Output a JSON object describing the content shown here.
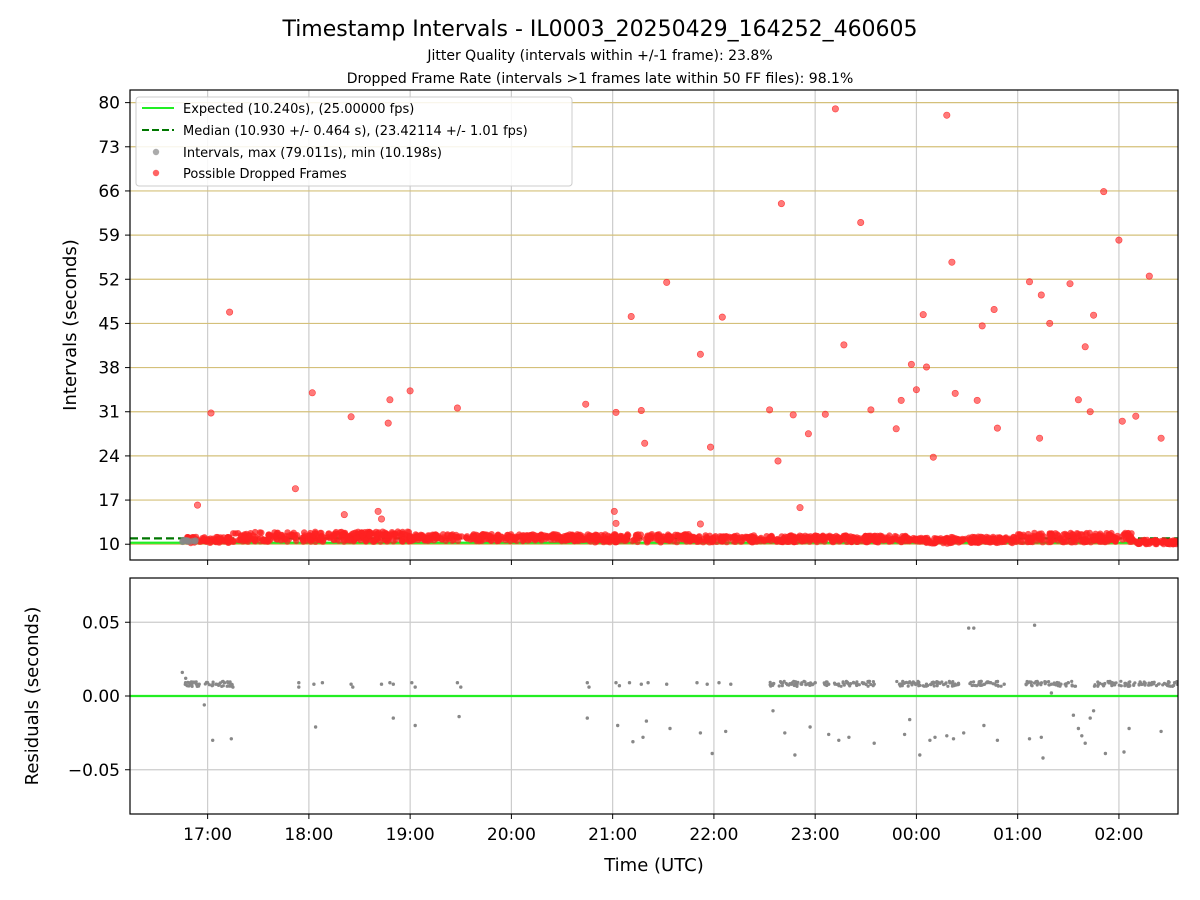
{
  "figure": {
    "title": "Timestamp Intervals - IL0003_20250429_164252_460605",
    "subtitle1": "Jitter Quality (intervals within +/-1 frame): 23.8%",
    "subtitle2": "Dropped Frame Rate (intervals >1 frames late within 50 FF files): 98.1%",
    "xlabel": "Time (UTC)"
  },
  "colors": {
    "expected": "#22ee22",
    "median": "#007700",
    "intervals": "#888888",
    "dropped": "#ff2222",
    "hgrid": "#d4c07a",
    "vgrid": "#cccccc"
  },
  "chart_data": [
    {
      "type": "scatter",
      "ylabel": "Intervals (seconds)",
      "ylim": [
        7.5,
        82
      ],
      "xlim": [
        "16:14",
        "02:35"
      ],
      "yticks": [
        10,
        17,
        24,
        31,
        38,
        45,
        52,
        59,
        66,
        73,
        80
      ],
      "xticks": [
        "17:00",
        "18:00",
        "19:00",
        "20:00",
        "21:00",
        "22:00",
        "23:00",
        "00:00",
        "01:00",
        "02:00"
      ],
      "grid": true,
      "legend_position": "top-left",
      "legend": [
        "Expected (10.240s), (25.00000 fps)",
        "Median (10.930 +/- 0.464 s), (23.42114 +/- 1.01 fps)",
        "Intervals, max (79.011s), min (10.198s)",
        "Possible Dropped Frames"
      ],
      "expected_value": 10.24,
      "median_value": 10.93,
      "band": [
        {
          "start": "16:48",
          "end": "17:15",
          "low": 10.2,
          "high": 11.2
        },
        {
          "start": "17:15",
          "end": "19:00",
          "low": 10.4,
          "high": 12.0
        },
        {
          "start": "19:00",
          "end": "20:45",
          "low": 10.5,
          "high": 11.6
        },
        {
          "start": "20:45",
          "end": "21:45",
          "low": 10.3,
          "high": 11.6
        },
        {
          "start": "21:45",
          "end": "23:55",
          "low": 10.3,
          "high": 11.4
        },
        {
          "start": "23:55",
          "end": "00:20",
          "low": 10.1,
          "high": 11.0
        },
        {
          "start": "00:20",
          "end": "01:00",
          "low": 10.2,
          "high": 11.2
        },
        {
          "start": "01:00",
          "end": "02:10",
          "low": 10.3,
          "high": 11.8
        },
        {
          "start": "02:10",
          "end": "02:35",
          "low": 10.0,
          "high": 10.7
        }
      ],
      "dropped_points": [
        {
          "t": "16:54",
          "v": 16.2
        },
        {
          "t": "17:02",
          "v": 30.8
        },
        {
          "t": "17:13",
          "v": 46.8
        },
        {
          "t": "17:52",
          "v": 18.8
        },
        {
          "t": "18:02",
          "v": 34.0
        },
        {
          "t": "18:21",
          "v": 14.7
        },
        {
          "t": "18:25",
          "v": 30.2
        },
        {
          "t": "18:41",
          "v": 15.2
        },
        {
          "t": "18:43",
          "v": 14.0
        },
        {
          "t": "18:47",
          "v": 29.2
        },
        {
          "t": "18:48",
          "v": 32.9
        },
        {
          "t": "19:00",
          "v": 34.3
        },
        {
          "t": "19:28",
          "v": 31.6
        },
        {
          "t": "20:44",
          "v": 32.2
        },
        {
          "t": "21:01",
          "v": 15.2
        },
        {
          "t": "21:02",
          "v": 13.3
        },
        {
          "t": "21:02",
          "v": 30.9
        },
        {
          "t": "21:11",
          "v": 46.1
        },
        {
          "t": "21:17",
          "v": 31.2
        },
        {
          "t": "21:19",
          "v": 26.0
        },
        {
          "t": "21:32",
          "v": 51.5
        },
        {
          "t": "21:52",
          "v": 40.1
        },
        {
          "t": "21:52",
          "v": 13.2
        },
        {
          "t": "21:58",
          "v": 25.4
        },
        {
          "t": "22:05",
          "v": 46.0
        },
        {
          "t": "22:33",
          "v": 31.3
        },
        {
          "t": "22:38",
          "v": 23.2
        },
        {
          "t": "22:40",
          "v": 64.0
        },
        {
          "t": "22:47",
          "v": 30.5
        },
        {
          "t": "22:51",
          "v": 15.8
        },
        {
          "t": "22:56",
          "v": 27.5
        },
        {
          "t": "23:06",
          "v": 30.6
        },
        {
          "t": "23:12",
          "v": 79.0
        },
        {
          "t": "23:17",
          "v": 41.6
        },
        {
          "t": "23:27",
          "v": 61.0
        },
        {
          "t": "23:33",
          "v": 31.3
        },
        {
          "t": "23:48",
          "v": 28.3
        },
        {
          "t": "23:51",
          "v": 32.8
        },
        {
          "t": "23:57",
          "v": 38.5
        },
        {
          "t": "00:00",
          "v": 34.5
        },
        {
          "t": "00:04",
          "v": 46.4
        },
        {
          "t": "00:06",
          "v": 38.1
        },
        {
          "t": "00:10",
          "v": 23.8
        },
        {
          "t": "00:18",
          "v": 78.0
        },
        {
          "t": "00:21",
          "v": 54.7
        },
        {
          "t": "00:23",
          "v": 33.9
        },
        {
          "t": "00:36",
          "v": 32.8
        },
        {
          "t": "00:39",
          "v": 44.6
        },
        {
          "t": "00:46",
          "v": 47.2
        },
        {
          "t": "00:48",
          "v": 28.4
        },
        {
          "t": "01:07",
          "v": 51.6
        },
        {
          "t": "01:13",
          "v": 26.8
        },
        {
          "t": "01:14",
          "v": 49.5
        },
        {
          "t": "01:19",
          "v": 45.0
        },
        {
          "t": "01:31",
          "v": 51.3
        },
        {
          "t": "01:36",
          "v": 32.9
        },
        {
          "t": "01:40",
          "v": 41.3
        },
        {
          "t": "01:43",
          "v": 31.0
        },
        {
          "t": "01:45",
          "v": 46.3
        },
        {
          "t": "01:51",
          "v": 65.9
        },
        {
          "t": "02:00",
          "v": 58.2
        },
        {
          "t": "02:02",
          "v": 29.5
        },
        {
          "t": "02:10",
          "v": 30.3
        },
        {
          "t": "02:18",
          "v": 52.5
        },
        {
          "t": "02:25",
          "v": 26.8
        }
      ]
    },
    {
      "type": "scatter",
      "ylabel": "Residuals (seconds)",
      "xlabel": "Time (UTC)",
      "ylim": [
        -0.08,
        0.08
      ],
      "yticks": [
        0.05,
        0.0,
        -0.05
      ],
      "ytick_labels": [
        "0.05",
        "0.00",
        "−0.05"
      ],
      "xlim": [
        "16:14",
        "02:35"
      ],
      "zero_line": 0.0,
      "residual_points": [
        {
          "t": "16:45",
          "v": 0.016
        },
        {
          "t": "16:47",
          "v": 0.012
        },
        {
          "t": "16:50",
          "v": 0.009
        },
        {
          "t": "16:55",
          "v": 0.008
        },
        {
          "t": "17:00",
          "v": 0.009
        },
        {
          "t": "17:05",
          "v": 0.008
        },
        {
          "t": "17:10",
          "v": 0.009
        },
        {
          "t": "17:14",
          "v": 0.008
        },
        {
          "t": "16:58",
          "v": -0.006
        },
        {
          "t": "17:03",
          "v": -0.03
        },
        {
          "t": "17:14",
          "v": -0.029
        },
        {
          "t": "17:15",
          "v": 0.006
        },
        {
          "t": "17:54",
          "v": 0.009
        },
        {
          "t": "17:54",
          "v": 0.006
        },
        {
          "t": "18:03",
          "v": 0.008
        },
        {
          "t": "18:04",
          "v": -0.021
        },
        {
          "t": "18:08",
          "v": 0.009
        },
        {
          "t": "18:25",
          "v": 0.008
        },
        {
          "t": "18:26",
          "v": 0.006
        },
        {
          "t": "18:43",
          "v": 0.008
        },
        {
          "t": "18:48",
          "v": 0.009
        },
        {
          "t": "18:50",
          "v": 0.008
        },
        {
          "t": "18:50",
          "v": -0.015
        },
        {
          "t": "19:01",
          "v": 0.009
        },
        {
          "t": "19:03",
          "v": 0.006
        },
        {
          "t": "19:03",
          "v": -0.02
        },
        {
          "t": "19:28",
          "v": 0.009
        },
        {
          "t": "19:30",
          "v": 0.006
        },
        {
          "t": "19:29",
          "v": -0.014
        },
        {
          "t": "20:45",
          "v": 0.009
        },
        {
          "t": "20:46",
          "v": 0.006
        },
        {
          "t": "20:45",
          "v": -0.015
        },
        {
          "t": "21:02",
          "v": 0.009
        },
        {
          "t": "21:04",
          "v": 0.007
        },
        {
          "t": "21:03",
          "v": -0.02
        },
        {
          "t": "21:10",
          "v": 0.009
        },
        {
          "t": "21:12",
          "v": -0.031
        },
        {
          "t": "21:17",
          "v": 0.008
        },
        {
          "t": "21:18",
          "v": -0.028
        },
        {
          "t": "21:20",
          "v": -0.017
        },
        {
          "t": "21:21",
          "v": 0.009
        },
        {
          "t": "21:32",
          "v": 0.008
        },
        {
          "t": "21:34",
          "v": -0.022
        },
        {
          "t": "21:50",
          "v": 0.009
        },
        {
          "t": "21:52",
          "v": -0.025
        },
        {
          "t": "21:56",
          "v": 0.008
        },
        {
          "t": "21:59",
          "v": -0.039
        },
        {
          "t": "22:03",
          "v": 0.009
        },
        {
          "t": "22:07",
          "v": -0.024
        },
        {
          "t": "22:10",
          "v": 0.008
        },
        {
          "t": "22:35",
          "v": 0.008
        },
        {
          "t": "22:35",
          "v": -0.01
        },
        {
          "t": "22:40",
          "v": 0.009
        },
        {
          "t": "22:42",
          "v": -0.025
        },
        {
          "t": "22:46",
          "v": 0.008
        },
        {
          "t": "22:48",
          "v": -0.04
        },
        {
          "t": "22:52",
          "v": 0.008
        },
        {
          "t": "22:57",
          "v": -0.021
        },
        {
          "t": "23:00",
          "v": 0.009
        },
        {
          "t": "23:08",
          "v": 0.008
        },
        {
          "t": "23:08",
          "v": -0.026
        },
        {
          "t": "23:14",
          "v": -0.03
        },
        {
          "t": "23:20",
          "v": 0.008
        },
        {
          "t": "23:20",
          "v": -0.028
        },
        {
          "t": "23:28",
          "v": 0.009
        },
        {
          "t": "23:35",
          "v": 0.008
        },
        {
          "t": "23:35",
          "v": -0.032
        },
        {
          "t": "23:50",
          "v": 0.008
        },
        {
          "t": "23:53",
          "v": -0.026
        },
        {
          "t": "23:56",
          "v": -0.016
        },
        {
          "t": "23:58",
          "v": 0.009
        },
        {
          "t": "00:02",
          "v": -0.04
        },
        {
          "t": "00:06",
          "v": 0.008
        },
        {
          "t": "00:08",
          "v": -0.03
        },
        {
          "t": "00:11",
          "v": -0.028
        },
        {
          "t": "00:18",
          "v": -0.027
        },
        {
          "t": "00:20",
          "v": 0.009
        },
        {
          "t": "00:22",
          "v": -0.029
        },
        {
          "t": "00:25",
          "v": 0.008
        },
        {
          "t": "00:28",
          "v": -0.025
        },
        {
          "t": "00:31",
          "v": 0.046
        },
        {
          "t": "00:34",
          "v": 0.046
        },
        {
          "t": "00:37",
          "v": 0.008
        },
        {
          "t": "00:40",
          "v": -0.02
        },
        {
          "t": "00:44",
          "v": 0.009
        },
        {
          "t": "00:48",
          "v": -0.03
        },
        {
          "t": "00:52",
          "v": 0.008
        },
        {
          "t": "01:05",
          "v": 0.008
        },
        {
          "t": "01:07",
          "v": -0.029
        },
        {
          "t": "01:10",
          "v": 0.048
        },
        {
          "t": "01:12",
          "v": 0.009
        },
        {
          "t": "01:14",
          "v": -0.028
        },
        {
          "t": "01:15",
          "v": -0.042
        },
        {
          "t": "01:20",
          "v": 0.002
        },
        {
          "t": "01:20",
          "v": 0.008
        },
        {
          "t": "01:30",
          "v": 0.009
        },
        {
          "t": "01:33",
          "v": -0.013
        },
        {
          "t": "01:36",
          "v": -0.022
        },
        {
          "t": "01:38",
          "v": -0.027
        },
        {
          "t": "01:40",
          "v": -0.032
        },
        {
          "t": "01:43",
          "v": -0.015
        },
        {
          "t": "01:45",
          "v": -0.01
        },
        {
          "t": "01:48",
          "v": 0.008
        },
        {
          "t": "01:52",
          "v": -0.039
        },
        {
          "t": "01:56",
          "v": 0.009
        },
        {
          "t": "02:03",
          "v": -0.038
        },
        {
          "t": "02:04",
          "v": 0.008
        },
        {
          "t": "02:06",
          "v": -0.022
        },
        {
          "t": "02:12",
          "v": 0.008
        },
        {
          "t": "02:20",
          "v": 0.009
        },
        {
          "t": "02:25",
          "v": -0.024
        },
        {
          "t": "02:28",
          "v": 0.008
        },
        {
          "t": "02:33",
          "v": 0.009
        }
      ]
    }
  ]
}
